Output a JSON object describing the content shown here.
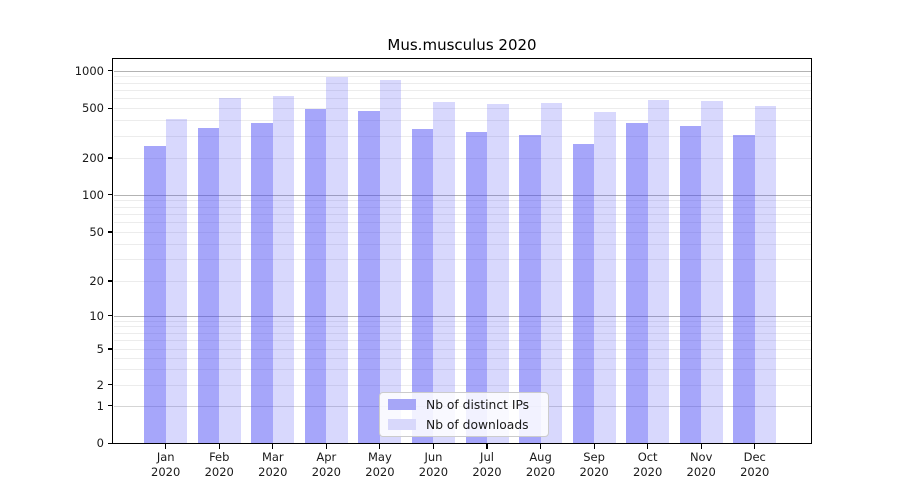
{
  "title": "Mus.musculus 2020",
  "legend": {
    "items": [
      {
        "label": "Nb of distinct IPs",
        "color": "#a6a6f7"
      },
      {
        "label": "Nb of downloads",
        "color": "#d8d8fb"
      }
    ]
  },
  "chart_data": {
    "type": "bar",
    "title": "Mus.musculus 2020",
    "categories": [
      "Jan 2020",
      "Feb 2020",
      "Mar 2020",
      "Apr 2020",
      "May 2020",
      "Jun 2020",
      "Jul 2020",
      "Aug 2020",
      "Sep 2020",
      "Oct 2020",
      "Nov 2020",
      "Dec 2020"
    ],
    "series": [
      {
        "name": "Nb of distinct IPs",
        "color": "rgba(70,70,245,0.48)",
        "values": [
          250,
          345,
          380,
          490,
          475,
          340,
          320,
          305,
          257,
          380,
          360,
          308
        ]
      },
      {
        "name": "Nb of downloads",
        "color": "rgba(70,70,245,0.21)",
        "values": [
          410,
          600,
          630,
          880,
          845,
          560,
          540,
          550,
          465,
          583,
          570,
          520
        ]
      }
    ],
    "xlabel": "",
    "ylabel": "",
    "yscale": "symlog",
    "yticks": [
      0,
      1,
      2,
      5,
      10,
      20,
      50,
      100,
      200,
      500,
      1000
    ],
    "ylim": [
      0,
      1150
    ],
    "grid": "horizontal major and log-minor gridlines",
    "legend_position": "lower center",
    "colors": {
      "major_grid": "#b3b3b3",
      "minor_grid": "#ececec",
      "unit_grid": "#d5d5d5",
      "bar_distinct_ips_effective": "#a6a6f7",
      "bar_downloads_effective": "#d8d8fb"
    }
  }
}
